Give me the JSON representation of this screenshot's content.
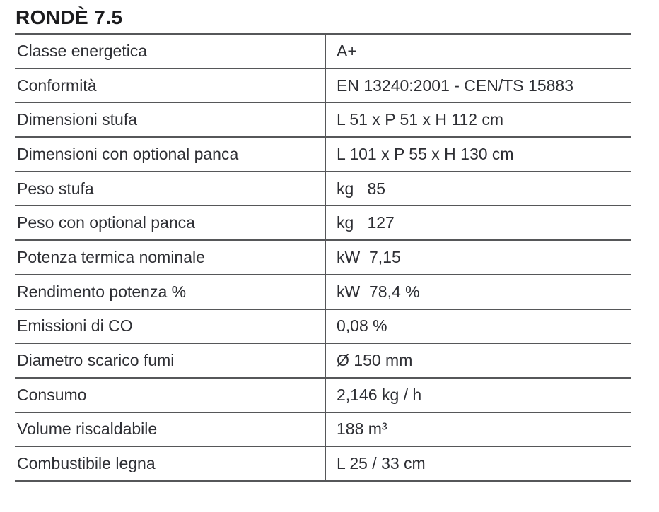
{
  "title": "RONDÈ 7.5",
  "table": {
    "rows": [
      {
        "label": "Classe energetica",
        "value": "A+"
      },
      {
        "label": "Conformità",
        "value": "EN 13240:2001 - CEN/TS 15883"
      },
      {
        "label": "Dimensioni stufa",
        "value": "L 51 x P 51 x H 112 cm"
      },
      {
        "label": "Dimensioni con optional panca",
        "value": "L 101 x P 55 x H 130 cm"
      },
      {
        "label": "Peso stufa",
        "value": "kg   85"
      },
      {
        "label": "Peso con optional panca",
        "value": "kg   127"
      },
      {
        "label": "Potenza termica nominale",
        "value": "kW  7,15"
      },
      {
        "label": "Rendimento potenza %",
        "value": "kW  78,4 %"
      },
      {
        "label": "Emissioni di CO",
        "value": "0,08 %"
      },
      {
        "label": "Diametro scarico fumi",
        "value": "Ø 150 mm"
      },
      {
        "label": "Consumo",
        "value": "2,146 kg / h"
      },
      {
        "label": "Volume riscaldabile",
        "value": "188 m³"
      },
      {
        "label": "Combustibile legna",
        "value": "L 25 / 33 cm"
      }
    ]
  },
  "colors": {
    "rule_gray": "#565759",
    "text_dark": "#2e2f34",
    "title_black": "#1c1c1e"
  }
}
